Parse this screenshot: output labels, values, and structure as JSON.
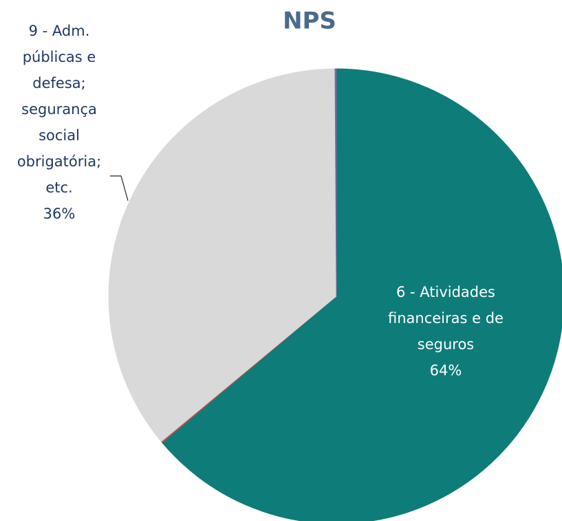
{
  "chart_data": {
    "type": "pie",
    "title": "NPS",
    "categories": [
      "6 - Atividades financeiras e de seguros",
      null,
      "9 - Adm. públicas e defesa; segurança social obrigatória; etc.",
      null
    ],
    "values": [
      64,
      0.1,
      36,
      0.1
    ],
    "value_labels": [
      "64%",
      null,
      "36%",
      null
    ],
    "colors": [
      "#0e7c78",
      "#c0504d",
      "#d9d9d9",
      "#8064a2"
    ]
  }
}
